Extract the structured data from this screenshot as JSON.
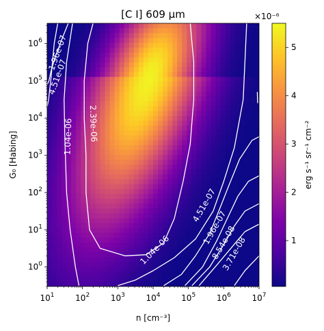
{
  "chart_data": {
    "type": "heatmap",
    "title": "[C I] 609 μm",
    "xlabel": "n [cm⁻³]",
    "ylabel": "G₀ [Habing]",
    "x_scale": "log",
    "y_scale": "log",
    "xlim": [
      10,
      10000000
    ],
    "ylim": [
      0.3,
      3500000
    ],
    "x_ticks": [
      {
        "value": 10,
        "base": "10",
        "exp": "1"
      },
      {
        "value": 100,
        "base": "10",
        "exp": "2"
      },
      {
        "value": 1000,
        "base": "10",
        "exp": "3"
      },
      {
        "value": 10000,
        "base": "10",
        "exp": "4"
      },
      {
        "value": 100000,
        "base": "10",
        "exp": "5"
      },
      {
        "value": 1000000,
        "base": "10",
        "exp": "6"
      },
      {
        "value": 10000000,
        "base": "10",
        "exp": "7"
      }
    ],
    "y_ticks": [
      {
        "value": 1,
        "base": "10",
        "exp": "0"
      },
      {
        "value": 10,
        "base": "10",
        "exp": "1"
      },
      {
        "value": 100,
        "base": "10",
        "exp": "2"
      },
      {
        "value": 1000,
        "base": "10",
        "exp": "3"
      },
      {
        "value": 10000,
        "base": "10",
        "exp": "4"
      },
      {
        "value": 100000,
        "base": "10",
        "exp": "5"
      },
      {
        "value": 1000000,
        "base": "10",
        "exp": "6"
      }
    ],
    "colormap": "plasma",
    "colorbar": {
      "label": "erg s⁻¹ sr⁻¹ cm⁻²",
      "multiplier": "×10⁻⁶",
      "range": [
        0.05,
        5.5
      ],
      "ticks": [
        "1",
        "2",
        "3",
        "4",
        "5"
      ],
      "tick_values": [
        1,
        2,
        3,
        4,
        5
      ]
    },
    "peak": {
      "log_n": 3.9,
      "log_g": 5.1,
      "value": 5.4
    },
    "contour_levels": [
      "2.39e-06",
      "1.04e-06",
      "4.51e-07",
      "1.96e-07",
      "8.54e-08",
      "3.71e-08"
    ],
    "contours": [
      {
        "label": "2.39e-06",
        "points": [
          [
            2.3,
            6.55
          ],
          [
            2.15,
            6.0
          ],
          [
            2.05,
            5.0
          ],
          [
            2.05,
            4.0
          ],
          [
            2.1,
            3.0
          ],
          [
            2.1,
            2.0
          ],
          [
            2.2,
            1.0
          ],
          [
            2.5,
            0.5
          ],
          [
            3.2,
            0.3
          ],
          [
            3.8,
            0.33
          ],
          [
            4.3,
            0.65
          ],
          [
            4.6,
            1.3
          ],
          [
            4.85,
            2.3
          ],
          [
            5.05,
            3.3
          ],
          [
            5.15,
            4.5
          ],
          [
            5.15,
            5.5
          ],
          [
            5.05,
            6.55
          ]
        ],
        "labels": [
          {
            "log_n": 2.3,
            "log_g": 3.85,
            "angle": 88
          }
        ]
      },
      {
        "label": "1.04e-06",
        "points": [
          [
            1.72,
            6.55
          ],
          [
            1.55,
            5.5
          ],
          [
            1.48,
            4.5
          ],
          [
            1.5,
            3.5
          ],
          [
            1.55,
            2.0
          ],
          [
            1.65,
            1.0
          ],
          [
            1.8,
            0.0
          ],
          [
            1.9,
            -0.5
          ]
        ],
        "labels": [
          {
            "log_n": 1.6,
            "log_g": 3.5,
            "angle": -88
          }
        ]
      },
      {
        "label": "1.04e-06",
        "points": [
          [
            3.0,
            -0.5
          ],
          [
            3.5,
            -0.35
          ],
          [
            4.0,
            -0.1
          ],
          [
            4.6,
            0.25
          ],
          [
            5.2,
            0.75
          ],
          [
            5.7,
            1.5
          ],
          [
            6.0,
            2.3
          ],
          [
            6.3,
            3.2
          ],
          [
            6.55,
            4.5
          ],
          [
            6.6,
            5.5
          ],
          [
            6.65,
            6.55
          ]
        ],
        "labels": [
          {
            "log_n": 4.05,
            "log_g": 0.45,
            "angle": -45
          }
        ]
      },
      {
        "label": "4.51e-07",
        "points": [
          [
            1.3,
            6.55
          ],
          [
            1.2,
            6.0
          ],
          [
            1.1,
            5.0
          ],
          [
            1.04,
            4.5
          ],
          [
            1.0,
            4.3
          ]
        ],
        "labels": [
          {
            "log_n": 1.3,
            "log_g": 5.1,
            "angle": -70
          }
        ]
      },
      {
        "label": "4.51e-07",
        "points": [
          [
            4.3,
            -0.5
          ],
          [
            4.8,
            -0.2
          ],
          [
            5.2,
            0.3
          ],
          [
            5.6,
            0.9
          ],
          [
            5.9,
            1.6
          ],
          [
            6.15,
            2.2
          ],
          [
            6.45,
            2.9
          ],
          [
            6.8,
            3.4
          ],
          [
            7.0,
            3.5
          ]
        ],
        "labels": [
          {
            "log_n": 5.45,
            "log_g": 1.65,
            "angle": -60
          }
        ]
      },
      {
        "label": "1.96e-07",
        "points": [
          [
            1.6,
            6.55
          ],
          [
            1.45,
            6.2
          ],
          [
            1.25,
            5.7
          ],
          [
            1.12,
            5.3
          ],
          [
            1.05,
            5.0
          ],
          [
            1.0,
            4.9
          ]
        ],
        "labels": [
          {
            "log_n": 1.3,
            "log_g": 5.75,
            "angle": -70
          }
        ]
      },
      {
        "label": "1.96e-07",
        "points": [
          [
            4.9,
            -0.5
          ],
          [
            5.4,
            0.0
          ],
          [
            5.8,
            0.7
          ],
          [
            6.1,
            1.3
          ],
          [
            6.4,
            1.9
          ],
          [
            6.7,
            2.3
          ],
          [
            7.0,
            2.45
          ]
        ],
        "labels": [
          {
            "log_n": 5.75,
            "log_g": 1.05,
            "angle": -60
          }
        ]
      },
      {
        "label": "8.54e-08",
        "points": [
          [
            5.1,
            -0.5
          ],
          [
            5.6,
            0.0
          ],
          [
            6.0,
            0.6
          ],
          [
            6.3,
            1.1
          ],
          [
            6.6,
            1.5
          ],
          [
            7.0,
            1.7
          ]
        ],
        "labels": [
          {
            "log_n": 6.0,
            "log_g": 0.65,
            "angle": -60
          }
        ]
      },
      {
        "label": "3.71e-08",
        "points": [
          [
            5.3,
            -0.5
          ],
          [
            5.8,
            0.05
          ],
          [
            6.2,
            0.5
          ],
          [
            6.6,
            0.95
          ],
          [
            7.0,
            1.15
          ]
        ],
        "labels": [
          {
            "log_n": 6.3,
            "log_g": 0.35,
            "angle": -60
          }
        ]
      },
      {
        "label": "",
        "points": [
          [
            7.0,
            0.3
          ],
          [
            6.6,
            -0.1
          ],
          [
            6.3,
            -0.5
          ]
        ],
        "labels": []
      },
      {
        "label": "",
        "points": [
          [
            6.95,
            4.7
          ],
          [
            6.96,
            4.4
          ]
        ],
        "labels": []
      }
    ]
  }
}
